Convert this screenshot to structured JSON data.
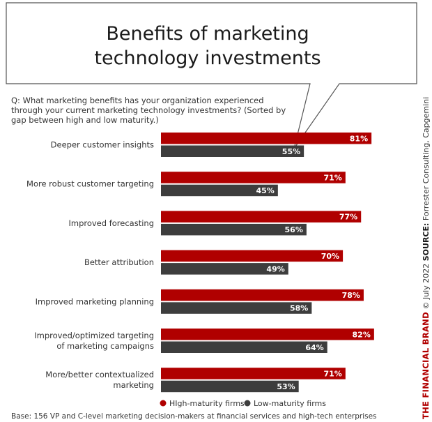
{
  "title_lines": [
    "Benefits of marketing",
    "technology investments"
  ],
  "question_lines": [
    "Q: What marketing benefits has your organization experienced",
    "through your current marketing technology investments? (Sorted by",
    "gap between high and low maturity.)"
  ],
  "base_note": "Base: 156 VP and C-level marketing decision-makers at financial services and high-tech enterprises",
  "side_credit": {
    "brand": "THE FINANCIAL BRAND",
    "date": " © July 2022 ",
    "source_label": "SOURCE:",
    "source": " Forrester Consulting, Capgemini"
  },
  "colors": {
    "high": "#b00000",
    "low": "#3d3d3d"
  },
  "chart_data": {
    "type": "bar",
    "orientation": "horizontal",
    "categories": [
      [
        "Deeper customer insights"
      ],
      [
        "More robust customer targeting"
      ],
      [
        "Improved forecasting"
      ],
      [
        "Better attribution"
      ],
      [
        "Improved marketing planning"
      ],
      [
        "Improved/optimized targeting",
        "of marketing campaigns"
      ],
      [
        "More/better contextualized",
        "marketing"
      ]
    ],
    "series": [
      {
        "name": "HIgh-maturity firms",
        "values": [
          81,
          71,
          77,
          70,
          78,
          82,
          71
        ],
        "color": "#b00000"
      },
      {
        "name": "Low-maturity firms",
        "values": [
          55,
          45,
          56,
          49,
          58,
          64,
          53
        ],
        "color": "#3d3d3d"
      }
    ],
    "value_suffix": "%",
    "xlim": [
      0,
      100
    ],
    "grid": false,
    "legend_position": "bottom"
  }
}
